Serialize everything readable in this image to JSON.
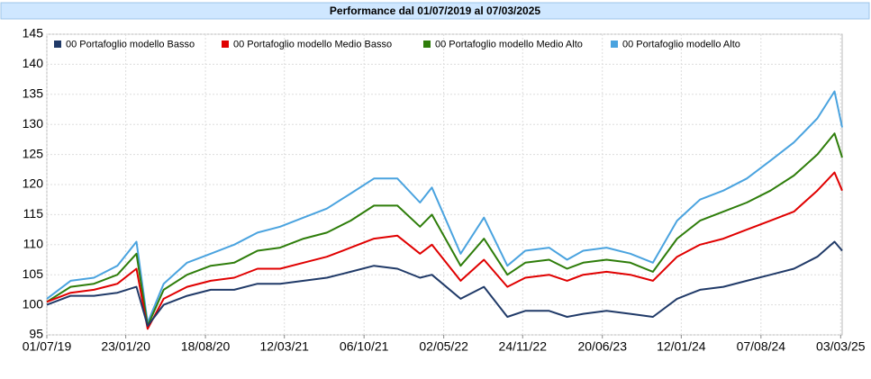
{
  "chart_data": {
    "type": "line",
    "title": "Performance dal 01/07/2019 al 07/03/2025",
    "x": [
      "2019-07-01",
      "2019-09-01",
      "2019-11-01",
      "2020-01-01",
      "2020-02-20",
      "2020-03-20",
      "2020-05-01",
      "2020-07-01",
      "2020-09-01",
      "2020-11-01",
      "2021-01-01",
      "2021-03-01",
      "2021-05-01",
      "2021-07-01",
      "2021-09-01",
      "2021-11-01",
      "2022-01-01",
      "2022-03-01",
      "2022-04-01",
      "2022-06-15",
      "2022-08-15",
      "2022-10-15",
      "2022-12-01",
      "2023-02-01",
      "2023-03-20",
      "2023-05-01",
      "2023-07-01",
      "2023-09-01",
      "2023-10-30",
      "2024-01-01",
      "2024-03-01",
      "2024-05-01",
      "2024-07-01",
      "2024-09-01",
      "2024-11-01",
      "2025-01-01",
      "2025-02-15",
      "2025-03-07"
    ],
    "series": [
      {
        "name": "00 Portafoglio modello Basso",
        "color": "#203a68",
        "values": [
          100,
          101.5,
          101.5,
          102,
          103,
          96.5,
          100,
          101.5,
          102.5,
          102.5,
          103.5,
          103.5,
          104,
          104.5,
          105.5,
          106.5,
          106,
          104.5,
          105,
          101,
          103,
          98,
          99,
          99,
          98,
          98.5,
          99,
          98.5,
          98,
          101,
          102.5,
          103,
          104,
          105,
          106,
          108,
          110.5,
          109
        ]
      },
      {
        "name": "00 Portafoglio modello Medio Basso",
        "color": "#e00000",
        "values": [
          100.5,
          102,
          102.5,
          103.5,
          106,
          96,
          101,
          103,
          104,
          104.5,
          106,
          106,
          107,
          108,
          109.5,
          111,
          111.5,
          108.5,
          110,
          104,
          107.5,
          103,
          104.5,
          105,
          104,
          105,
          105.5,
          105,
          104,
          108,
          110,
          111,
          112.5,
          114,
          115.5,
          119,
          122,
          119
        ]
      },
      {
        "name": "00 Portafoglio modello Medio Alto",
        "color": "#2e7d0a",
        "values": [
          100.5,
          103,
          103.5,
          105,
          108.5,
          96.5,
          102.5,
          105,
          106.5,
          107,
          109,
          109.5,
          111,
          112,
          114,
          116.5,
          116.5,
          113,
          115,
          106.5,
          111,
          105,
          107,
          107.5,
          106,
          107,
          107.5,
          107,
          105.5,
          111,
          114,
          115.5,
          117,
          119,
          121.5,
          125,
          128.5,
          124.5
        ]
      },
      {
        "name": "00 Portafoglio modello Alto",
        "color": "#4aa3df",
        "values": [
          101,
          104,
          104.5,
          106.5,
          110.5,
          97,
          103.5,
          107,
          108.5,
          110,
          112,
          113,
          114.5,
          116,
          118.5,
          121,
          121,
          117,
          119.5,
          108.5,
          114.5,
          106.5,
          109,
          109.5,
          107.5,
          109,
          109.5,
          108.5,
          107,
          114,
          117.5,
          119,
          121,
          124,
          127,
          131,
          135.5,
          129.5
        ]
      }
    ],
    "xlim": [
      "2019-07-01",
      "2025-03-07"
    ],
    "xticks": [
      {
        "value": "2019-07-01",
        "label": "01/07/19"
      },
      {
        "value": "2020-01-23",
        "label": "23/01/20"
      },
      {
        "value": "2020-08-18",
        "label": "18/08/20"
      },
      {
        "value": "2021-03-12",
        "label": "12/03/21"
      },
      {
        "value": "2021-10-06",
        "label": "06/10/21"
      },
      {
        "value": "2022-05-02",
        "label": "02/05/22"
      },
      {
        "value": "2022-11-24",
        "label": "24/11/22"
      },
      {
        "value": "2023-06-20",
        "label": "20/06/23"
      },
      {
        "value": "2024-01-12",
        "label": "12/01/24"
      },
      {
        "value": "2024-08-07",
        "label": "07/08/24"
      },
      {
        "value": "2025-03-03",
        "label": "03/03/25"
      }
    ],
    "ylim": [
      95,
      145
    ],
    "yticks": [
      95,
      100,
      105,
      110,
      115,
      120,
      125,
      130,
      135,
      140,
      145
    ],
    "grid": true,
    "legend": "top"
  }
}
